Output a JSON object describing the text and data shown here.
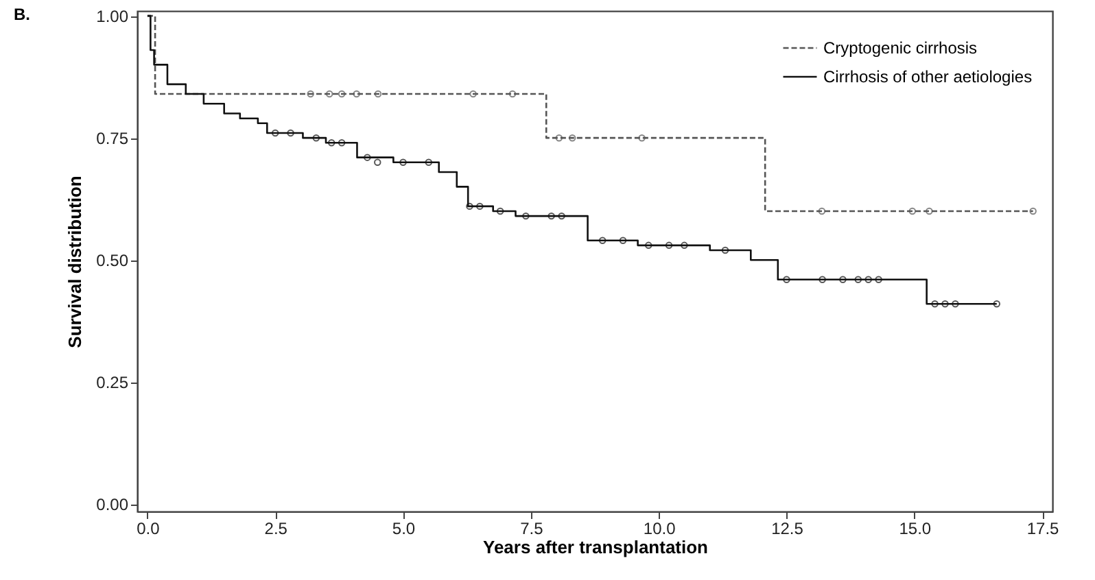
{
  "chart_data": {
    "type": "step",
    "title": "B.",
    "xlabel": "Years after transplantation",
    "ylabel": "Survival distribution",
    "xlim": [
      -0.2,
      17.7
    ],
    "ylim": [
      -0.015,
      1.01
    ],
    "xticks": [
      {
        "value": 0,
        "label": "0.0"
      },
      {
        "value": 2.5,
        "label": "2.5"
      },
      {
        "value": 5,
        "label": "5.0"
      },
      {
        "value": 7.5,
        "label": "7.5"
      },
      {
        "value": 10,
        "label": "10.0"
      },
      {
        "value": 12.5,
        "label": "12.5"
      },
      {
        "value": 15,
        "label": "15.0"
      },
      {
        "value": 17.5,
        "label": "17.5"
      }
    ],
    "yticks": [
      {
        "value": 0,
        "label": "0.00"
      },
      {
        "value": 0.25,
        "label": "0.25"
      },
      {
        "value": 0.5,
        "label": "0.50"
      },
      {
        "value": 0.75,
        "label": "0.75"
      },
      {
        "value": 1,
        "label": "1.00"
      }
    ],
    "grid": false,
    "legend": "top right",
    "series": [
      {
        "name": "Cryptogenic cirrhosis",
        "color": "#555555",
        "line_style": "dashed",
        "marker": "none",
        "x": [
          0,
          0.15,
          7.8,
          12.08,
          17.32
        ],
        "values": [
          1.0,
          0.84,
          0.75,
          0.6,
          0.6
        ]
      },
      {
        "name": "Cirrhosis of other aetiologies",
        "color": "#111111",
        "line_style": "solid",
        "marker": "none",
        "x": [
          0,
          0.06,
          0.13,
          0.39,
          0.75,
          1.1,
          1.5,
          1.81,
          2.16,
          2.34,
          3.04,
          3.49,
          4.1,
          4.81,
          5.34,
          5.7,
          6.05,
          6.27,
          6.76,
          7.2,
          7.73,
          8.61,
          9.59,
          11.0,
          11.8,
          12.33,
          15.24,
          16.61
        ],
        "values": [
          1.0,
          0.93,
          0.9,
          0.86,
          0.84,
          0.82,
          0.8,
          0.79,
          0.78,
          0.76,
          0.75,
          0.74,
          0.71,
          0.7,
          0.7,
          0.68,
          0.65,
          0.61,
          0.6,
          0.59,
          0.59,
          0.54,
          0.53,
          0.52,
          0.5,
          0.46,
          0.41,
          0.41
        ]
      },
      {
        "type": "scatter",
        "color": "#555555",
        "marker": "circle",
        "x": [
          3.19,
          3.56,
          3.8,
          4.09,
          4.51,
          6.37,
          7.14,
          8.05,
          8.31,
          9.67,
          13.19,
          14.96,
          15.29,
          17.32
        ],
        "values": [
          0.84,
          0.84,
          0.84,
          0.84,
          0.84,
          0.84,
          0.84,
          0.75,
          0.75,
          0.75,
          0.6,
          0.6,
          0.6,
          0.6
        ]
      },
      {
        "type": "scatter",
        "color": "#111111",
        "marker": "circle",
        "x": [
          2.5,
          2.8,
          3.3,
          3.6,
          3.8,
          4.3,
          4.5,
          5.0,
          5.5,
          6.3,
          6.5,
          6.9,
          7.4,
          7.9,
          8.1,
          8.9,
          9.3,
          9.8,
          10.2,
          10.5,
          11.3,
          12.5,
          13.2,
          13.6,
          13.9,
          14.1,
          14.3,
          15.4,
          15.6,
          15.8,
          16.61
        ],
        "values": [
          0.76,
          0.76,
          0.75,
          0.74,
          0.74,
          0.71,
          0.7,
          0.7,
          0.7,
          0.61,
          0.61,
          0.6,
          0.59,
          0.59,
          0.59,
          0.54,
          0.54,
          0.53,
          0.53,
          0.53,
          0.52,
          0.46,
          0.46,
          0.46,
          0.46,
          0.46,
          0.46,
          0.41,
          0.41,
          0.41,
          0.41
        ]
      }
    ]
  }
}
